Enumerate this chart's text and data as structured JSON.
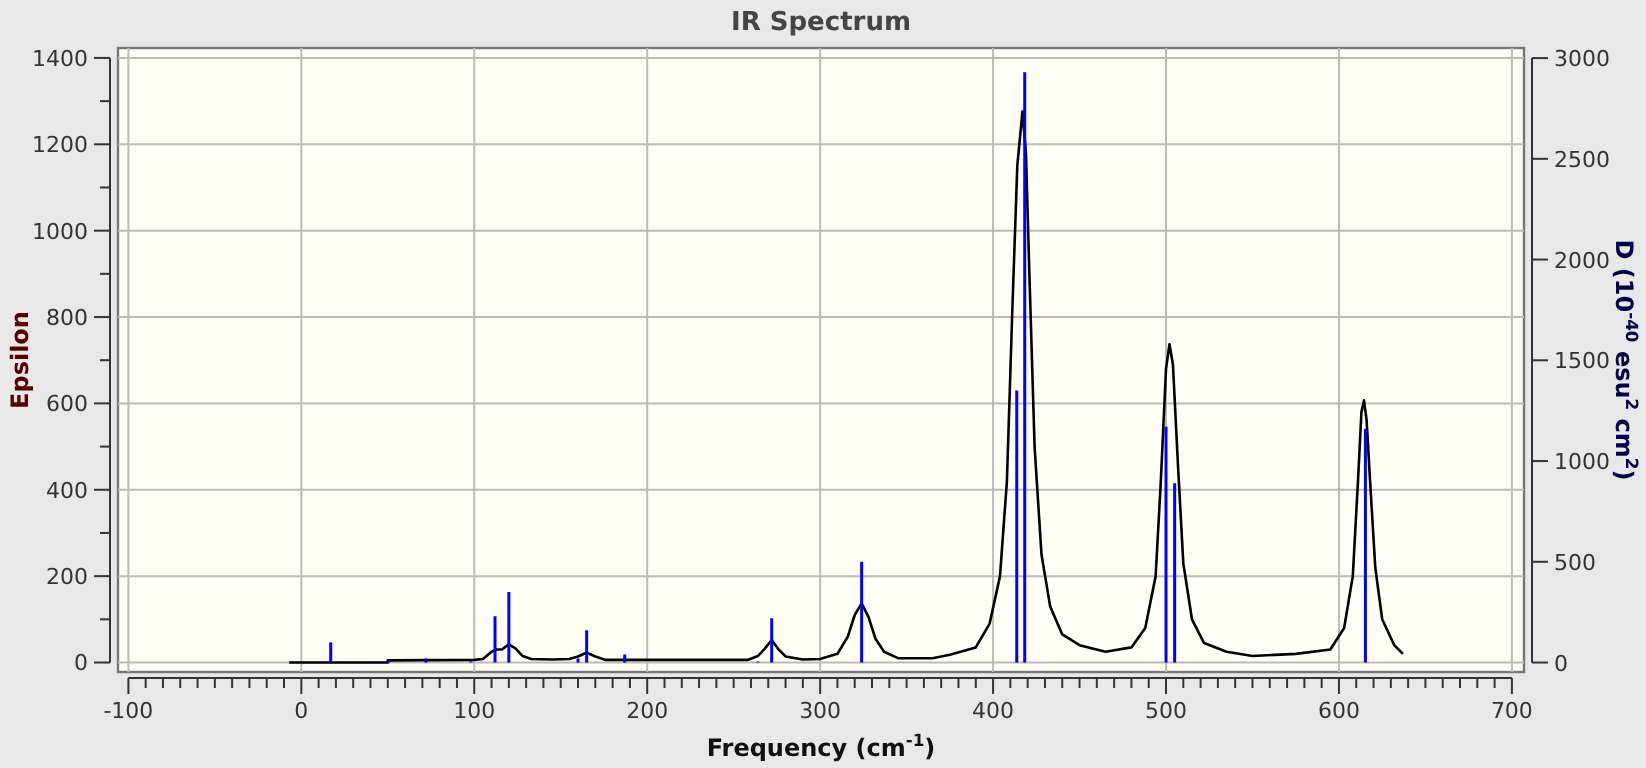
{
  "chart_data": {
    "type": "line",
    "title": "IR Spectrum",
    "xlabel": "Frequency (cm$^{-1}$)",
    "ylabel": "Epsilon",
    "y2label": "D (10$^{-40}$ esu$^{2}$ cm$^{2}$)",
    "xlim": [
      -106,
      707
    ],
    "ylim": [
      -22,
      1423
    ],
    "y2lim": [
      -47,
      3050
    ],
    "xticks": [
      -100,
      {
        "value": -90,
        "label": null
      },
      {
        "value": -80,
        "label": null
      },
      {
        "value": -70,
        "label": null
      },
      {
        "value": -60,
        "label": null
      },
      {
        "value": -50,
        "label": null
      },
      {
        "value": -40,
        "label": null
      },
      {
        "value": -30,
        "label": null
      },
      {
        "value": -20,
        "label": null
      },
      {
        "value": -10,
        "label": null
      },
      0,
      {
        "value": 10,
        "label": null
      },
      {
        "value": 20,
        "label": null
      },
      {
        "value": 30,
        "label": null
      },
      {
        "value": 40,
        "label": null
      },
      {
        "value": 50,
        "label": null
      },
      {
        "value": 60,
        "label": null
      },
      {
        "value": 70,
        "label": null
      },
      {
        "value": 80,
        "label": null
      },
      {
        "value": 90,
        "label": null
      },
      100,
      {
        "value": 110,
        "label": null
      },
      {
        "value": 120,
        "label": null
      },
      {
        "value": 130,
        "label": null
      },
      {
        "value": 140,
        "label": null
      },
      {
        "value": 150,
        "label": null
      },
      {
        "value": 160,
        "label": null
      },
      {
        "value": 170,
        "label": null
      },
      {
        "value": 180,
        "label": null
      },
      {
        "value": 190,
        "label": null
      },
      200,
      {
        "value": 210,
        "label": null
      },
      {
        "value": 220,
        "label": null
      },
      {
        "value": 230,
        "label": null
      },
      {
        "value": 240,
        "label": null
      },
      {
        "value": 250,
        "label": null
      },
      {
        "value": 260,
        "label": null
      },
      {
        "value": 270,
        "label": null
      },
      {
        "value": 280,
        "label": null
      },
      {
        "value": 290,
        "label": null
      },
      300,
      {
        "value": 310,
        "label": null
      },
      {
        "value": 320,
        "label": null
      },
      {
        "value": 330,
        "label": null
      },
      {
        "value": 340,
        "label": null
      },
      {
        "value": 350,
        "label": null
      },
      {
        "value": 360,
        "label": null
      },
      {
        "value": 370,
        "label": null
      },
      {
        "value": 380,
        "label": null
      },
      {
        "value": 390,
        "label": null
      },
      400,
      {
        "value": 410,
        "label": null
      },
      {
        "value": 420,
        "label": null
      },
      {
        "value": 430,
        "label": null
      },
      {
        "value": 440,
        "label": null
      },
      {
        "value": 450,
        "label": null
      },
      {
        "value": 460,
        "label": null
      },
      {
        "value": 470,
        "label": null
      },
      {
        "value": 480,
        "label": null
      },
      {
        "value": 490,
        "label": null
      },
      500,
      {
        "value": 510,
        "label": null
      },
      {
        "value": 520,
        "label": null
      },
      {
        "value": 530,
        "label": null
      },
      {
        "value": 540,
        "label": null
      },
      {
        "value": 550,
        "label": null
      },
      {
        "value": 560,
        "label": null
      },
      {
        "value": 570,
        "label": null
      },
      {
        "value": 580,
        "label": null
      },
      {
        "value": 590,
        "label": null
      },
      600,
      {
        "value": 610,
        "label": null
      },
      {
        "value": 620,
        "label": null
      },
      {
        "value": 630,
        "label": null
      },
      {
        "value": 640,
        "label": null
      },
      {
        "value": 650,
        "label": null
      },
      {
        "value": 660,
        "label": null
      },
      {
        "value": 670,
        "label": null
      },
      {
        "value": 680,
        "label": null
      },
      {
        "value": 690,
        "label": null
      },
      700
    ],
    "yticks": [
      0,
      {
        "value": 100,
        "label": null
      },
      200,
      {
        "value": 300,
        "label": null
      },
      400,
      {
        "value": 500,
        "label": null
      },
      600,
      {
        "value": 700,
        "label": null
      },
      800,
      {
        "value": 900,
        "label": null
      },
      1000,
      {
        "value": 1100,
        "label": null
      },
      1200,
      {
        "value": 1300,
        "label": null
      },
      1400
    ],
    "y2ticks": [
      0,
      500,
      1000,
      1500,
      2000,
      2500,
      3000
    ],
    "grid": true,
    "marker": "none",
    "line_style": "solid",
    "series": [
      {
        "color": "#000000",
        "x": [
          -7,
          50,
          50,
          100,
          105,
          110,
          113,
          116,
          120,
          124,
          128,
          133,
          145,
          155,
          160,
          165,
          170,
          176,
          200,
          230,
          258,
          264,
          268,
          272,
          276,
          280,
          290,
          300,
          310,
          316,
          320,
          324,
          328,
          332,
          337,
          345,
          365,
          375,
          390,
          398,
          404,
          408,
          411,
          414,
          417,
          419,
          421,
          424,
          428,
          433,
          440,
          450,
          465,
          480,
          488,
          494,
          497,
          500,
          502,
          504,
          507,
          510,
          515,
          522,
          535,
          550,
          575,
          595,
          603,
          608,
          611,
          613,
          614.5,
          616,
          618,
          621,
          625,
          632,
          637
        ],
        "values": [
          0,
          0,
          5,
          6,
          8,
          25,
          30,
          30,
          42,
          32,
          15,
          8,
          7,
          8,
          14,
          23,
          14,
          6,
          6,
          6,
          6,
          15,
          32,
          52,
          30,
          14,
          7,
          8,
          20,
          60,
          110,
          137,
          105,
          55,
          25,
          10,
          10,
          18,
          35,
          90,
          200,
          420,
          800,
          1150,
          1276,
          1180,
          900,
          500,
          250,
          130,
          65,
          40,
          25,
          35,
          80,
          200,
          420,
          680,
          737,
          690,
          450,
          230,
          100,
          45,
          25,
          15,
          20,
          30,
          80,
          200,
          420,
          580,
          607,
          560,
          420,
          220,
          100,
          40,
          20
        ]
      },
      {
        "type": "bar",
        "axis": "y2",
        "color": "#0000ff",
        "x": [
          17,
          50.5,
          72,
          98,
          112,
          120,
          160,
          165,
          187,
          264,
          272,
          324,
          413.7,
          418.3,
          500,
          505,
          615.3
        ],
        "values": [
          100,
          10,
          20,
          5,
          230,
          350,
          20,
          160,
          40,
          5,
          220,
          500,
          1350,
          2930,
          1170,
          890,
          1160
        ]
      }
    ]
  }
}
